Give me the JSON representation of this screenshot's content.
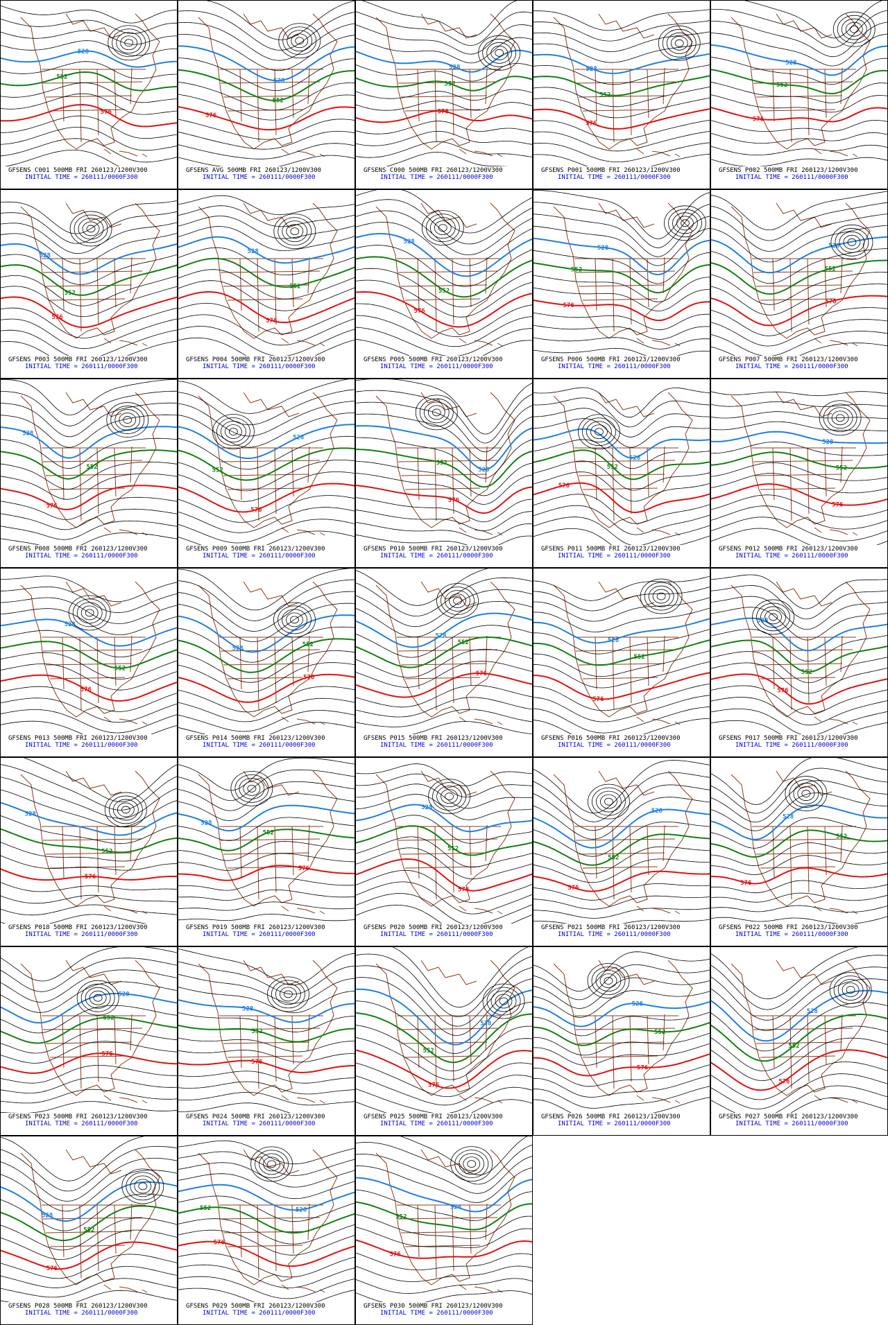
{
  "panels": [
    {
      "title": "GFSENS C001 500MB FRI 260123/1200V300",
      "init": "INITIAL TIME = 260111/0000F300",
      "contour_labels": [
        "528",
        "552",
        "576"
      ]
    },
    {
      "title": "GFSENS AVG 500MB FRI 260123/1200V300",
      "init": "INITIAL TIME = 260111/0000F300",
      "contour_labels": [
        "528",
        "552",
        "576"
      ]
    },
    {
      "title": "GFSENS C000 500MB FRI 260123/1200V300",
      "init": "INITIAL TIME = 260111/0000F300",
      "contour_labels": [
        "528",
        "552",
        "576"
      ]
    },
    {
      "title": "GFSENS P001 500MB FRI 260123/1200V300",
      "init": "INITIAL TIME = 260111/0000F300",
      "contour_labels": [
        "528",
        "552",
        "576"
      ]
    },
    {
      "title": "GFSENS P002 500MB FRI 260123/1200V300",
      "init": "INITIAL TIME = 260111/0000F300",
      "contour_labels": [
        "528",
        "552",
        "576"
      ]
    },
    {
      "title": "GFSENS P003 500MB FRI 260123/1200V300",
      "init": "INITIAL TIME = 260111/0000F300",
      "contour_labels": [
        "528",
        "552",
        "576"
      ]
    },
    {
      "title": "GFSENS P004 500MB FRI 260123/1200V300",
      "init": "INITIAL TIME = 260111/0000F300",
      "contour_labels": [
        "528",
        "552",
        "576"
      ]
    },
    {
      "title": "GFSENS P005 500MB FRI 260123/1200V300",
      "init": "INITIAL TIME = 260111/0000F300",
      "contour_labels": [
        "528",
        "552",
        "576"
      ]
    },
    {
      "title": "GFSENS P006 500MB FRI 260123/1200V300",
      "init": "INITIAL TIME = 260111/0000F300",
      "contour_labels": [
        "528",
        "552",
        "576"
      ]
    },
    {
      "title": "GFSENS P007 500MB FRI 260123/1200V300",
      "init": "INITIAL TIME = 260111/0000F300",
      "contour_labels": [
        "528",
        "552",
        "576"
      ]
    },
    {
      "title": "GFSENS P008 500MB FRI 260123/1200V300",
      "init": "INITIAL TIME = 260111/0000F300",
      "contour_labels": [
        "528",
        "552",
        "576"
      ]
    },
    {
      "title": "GFSENS P009 500MB FRI 260123/1200V300",
      "init": "INITIAL TIME = 260111/0000F300",
      "contour_labels": [
        "528",
        "552",
        "576"
      ]
    },
    {
      "title": "GFSENS P010 500MB FRI 260123/1200V300",
      "init": "INITIAL TIME = 260111/0000F300",
      "contour_labels": [
        "528",
        "552",
        "576"
      ]
    },
    {
      "title": "GFSENS P011 500MB FRI 260123/1200V300",
      "init": "INITIAL TIME = 260111/0000F300",
      "contour_labels": [
        "528",
        "552",
        "576"
      ]
    },
    {
      "title": "GFSENS P012 500MB FRI 260123/1200V300",
      "init": "INITIAL TIME = 260111/0000F300",
      "contour_labels": [
        "528",
        "552",
        "576"
      ]
    },
    {
      "title": "GFSENS P013 500MB FRI 260123/1200V300",
      "init": "INITIAL TIME = 260111/0000F300",
      "contour_labels": [
        "528",
        "552",
        "576"
      ]
    },
    {
      "title": "GFSENS P014 500MB FRI 260123/1200V300",
      "init": "INITIAL TIME = 260111/0000F300",
      "contour_labels": [
        "528",
        "552",
        "576"
      ]
    },
    {
      "title": "GFSENS P015 500MB FRI 260123/1200V300",
      "init": "INITIAL TIME = 260111/0000F300",
      "contour_labels": [
        "528",
        "552",
        "576"
      ]
    },
    {
      "title": "GFSENS P016 500MB FRI 260123/1200V300",
      "init": "INITIAL TIME = 260111/0000F300",
      "contour_labels": [
        "528",
        "552",
        "576"
      ]
    },
    {
      "title": "GFSENS P017 500MB FRI 260123/1200V300",
      "init": "INITIAL TIME = 260111/0000F300",
      "contour_labels": [
        "528",
        "552",
        "576"
      ]
    },
    {
      "title": "GFSENS P018 500MB FRI 260123/1200V300",
      "init": "INITIAL TIME = 260111/0000F300",
      "contour_labels": [
        "528",
        "552",
        "576"
      ]
    },
    {
      "title": "GFSENS P019 500MB FRI 260123/1200V300",
      "init": "INITIAL TIME = 260111/0000F300",
      "contour_labels": [
        "528",
        "552",
        "576"
      ]
    },
    {
      "title": "GFSENS P020 500MB FRI 260123/1200V300",
      "init": "INITIAL TIME = 260111/0000F300",
      "contour_labels": [
        "528",
        "552",
        "576"
      ]
    },
    {
      "title": "GFSENS P021 500MB FRI 260123/1200V300",
      "init": "INITIAL TIME = 260111/0000F300",
      "contour_labels": [
        "528",
        "552",
        "576"
      ]
    },
    {
      "title": "GFSENS P022 500MB FRI 260123/1200V300",
      "init": "INITIAL TIME = 260111/0000F300",
      "contour_labels": [
        "528",
        "552",
        "576"
      ]
    },
    {
      "title": "GFSENS P023 500MB FRI 260123/1200V300",
      "init": "INITIAL TIME = 260111/0000F300",
      "contour_labels": [
        "528",
        "552",
        "576"
      ]
    },
    {
      "title": "GFSENS P024 500MB FRI 260123/1200V300",
      "init": "INITIAL TIME = 260111/0000F300",
      "contour_labels": [
        "528",
        "552",
        "576"
      ]
    },
    {
      "title": "GFSENS P025 500MB FRI 260123/1200V300",
      "init": "INITIAL TIME = 260111/0000F300",
      "contour_labels": [
        "528",
        "552",
        "576"
      ]
    },
    {
      "title": "GFSENS P026 500MB FRI 260123/1200V300",
      "init": "INITIAL TIME = 260111/0000F300",
      "contour_labels": [
        "528",
        "552",
        "576"
      ]
    },
    {
      "title": "GFSENS P027 500MB FRI 260123/1200V300",
      "init": "INITIAL TIME = 260111/0000F300",
      "contour_labels": [
        "528",
        "552",
        "576"
      ]
    },
    {
      "title": "GFSENS P028 500MB FRI 260123/1200V300",
      "init": "INITIAL TIME = 260111/0000F300",
      "contour_labels": [
        "528",
        "552",
        "576"
      ]
    },
    {
      "title": "GFSENS P029 500MB FRI 260123/1200V300",
      "init": "INITIAL TIME = 260111/0000F300",
      "contour_labels": [
        "528",
        "552",
        "576"
      ]
    },
    {
      "title": "GFSENS P030 500MB FRI 260123/1200V300",
      "init": "INITIAL TIME = 260111/0000F300",
      "contour_labels": [
        "528",
        "552",
        "576"
      ]
    }
  ]
}
